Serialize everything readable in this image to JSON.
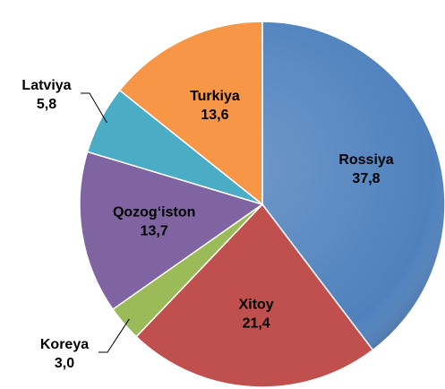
{
  "chart_data": {
    "type": "pie",
    "categories": [
      "Rossiya",
      "Xitoy",
      "Koreya",
      "Qozog‘iston",
      "Latviya",
      "Turkiya"
    ],
    "values": [
      37.8,
      21.4,
      3.0,
      13.7,
      5.8,
      13.6
    ],
    "value_labels": [
      "37,8",
      "21,4",
      "3,0",
      "13,7",
      "5,8",
      "13,6"
    ],
    "colors": [
      "#4f81bd",
      "#c0504d",
      "#9bbb59",
      "#8064a2",
      "#4bacc6",
      "#f79646"
    ]
  }
}
